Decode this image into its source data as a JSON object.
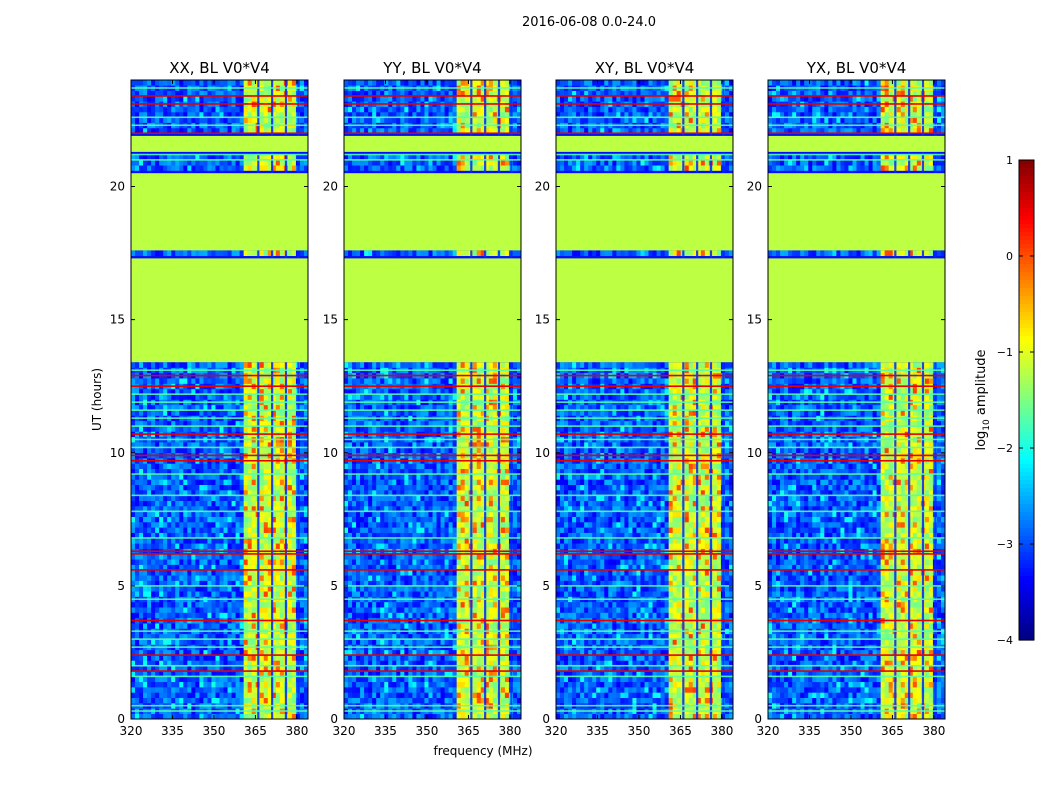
{
  "suptitle": "2016-06-08 0.0-24.0",
  "chart_data": [
    {
      "type": "heatmap",
      "title": "XX, BL V0*V4",
      "xlabel": "",
      "ylabel": "UT (hours)",
      "xticks": [
        "320",
        "335",
        "350",
        "365",
        "380"
      ],
      "yticks": [
        "0",
        "5",
        "10",
        "15",
        "20"
      ],
      "xlim": [
        320,
        384
      ],
      "ylim": [
        0,
        24
      ],
      "hot_band_mhz": [
        361,
        380
      ]
    },
    {
      "type": "heatmap",
      "title": "YY, BL V0*V4",
      "xlabel": "frequency (MHz)",
      "ylabel": "",
      "xticks": [
        "320",
        "335",
        "350",
        "365",
        "380"
      ],
      "yticks": [
        "0",
        "5",
        "10",
        "15",
        "20"
      ],
      "xlim": [
        320,
        384
      ],
      "ylim": [
        0,
        24
      ],
      "hot_band_mhz": [
        361,
        380
      ]
    },
    {
      "type": "heatmap",
      "title": "XY, BL V0*V4",
      "xlabel": "",
      "ylabel": "",
      "xticks": [
        "320",
        "335",
        "350",
        "365",
        "380"
      ],
      "yticks": [
        "0",
        "5",
        "10",
        "15",
        "20"
      ],
      "xlim": [
        320,
        384
      ],
      "ylim": [
        0,
        24
      ],
      "hot_band_mhz": [
        361,
        380
      ]
    },
    {
      "type": "heatmap",
      "title": "YX, BL V0*V4",
      "xlabel": "",
      "ylabel": "",
      "xticks": [
        "320",
        "335",
        "350",
        "365",
        "380"
      ],
      "yticks": [
        "0",
        "5",
        "10",
        "15",
        "20"
      ],
      "xlim": [
        320,
        384
      ],
      "ylim": [
        0,
        24
      ],
      "hot_band_mhz": [
        361,
        380
      ]
    }
  ],
  "flagged_time_ranges_ut": [
    [
      13.4,
      17.3
    ],
    [
      17.6,
      20.5
    ],
    [
      21.3,
      21.9
    ]
  ],
  "flagged_fill_value": -1.2,
  "colorbar": {
    "label_prefix": "log",
    "label_sub": "10",
    "label_suffix": " amplitude",
    "ticks": [
      "1",
      "0",
      "−1",
      "−2",
      "−3",
      "−4"
    ],
    "tick_values": [
      1,
      0,
      -1,
      -2,
      -3,
      -4
    ],
    "range": [
      -4,
      1
    ]
  }
}
